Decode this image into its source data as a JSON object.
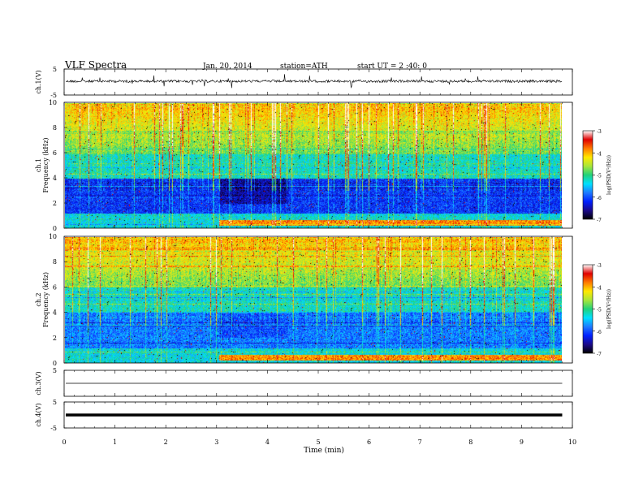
{
  "header": {
    "title": "VLF  Spectra",
    "date": "Jan. 20, 2014",
    "station": "station=ATH",
    "start": "start  UT  =  2 :40: 0"
  },
  "chart_data": [
    {
      "type": "line",
      "id": "ch1-waveform",
      "ylabel": "ch.1(V)",
      "ylim": [
        -5,
        5
      ],
      "yticks": [
        5,
        -5
      ],
      "xlim": [
        0,
        10
      ],
      "description_level": 0.3
    },
    {
      "type": "heatmap",
      "id": "ch1-spectrogram",
      "ylabel": [
        "ch.1",
        "Frequency  (kHz)"
      ],
      "ylim": [
        0,
        10
      ],
      "yticks": [
        0,
        2,
        4,
        6,
        8,
        10
      ],
      "xlim": [
        0,
        10
      ],
      "data_extent_x": 9.8,
      "colorbar": {
        "label": "log(PSD(V²/Hz))",
        "range": [
          -7,
          -3
        ],
        "ticks": [
          -3,
          -4,
          -5,
          -6,
          -7
        ]
      }
    },
    {
      "type": "heatmap",
      "id": "ch2-spectrogram",
      "ylabel": [
        "ch.2",
        "Frequency  (kHz)"
      ],
      "ylim": [
        0,
        10
      ],
      "yticks": [
        0,
        2,
        4,
        6,
        8,
        10
      ],
      "xlim": [
        0,
        10
      ],
      "data_extent_x": 9.8,
      "colorbar": {
        "label": "log(PSD(V²/Hz))",
        "range": [
          -7,
          -3
        ],
        "ticks": [
          -3,
          -4,
          -5,
          -6,
          -7
        ]
      }
    },
    {
      "type": "line",
      "id": "ch3-waveform",
      "ylabel": "ch.3(V)",
      "ylim": [
        -5,
        5
      ],
      "yticks": [
        5
      ],
      "xlim": [
        0,
        10
      ],
      "level": 0
    },
    {
      "type": "line",
      "id": "ch4-waveform",
      "ylabel": "ch.4(V)",
      "ylim": [
        -5,
        5
      ],
      "yticks": [
        5,
        -5
      ],
      "xlim": [
        0,
        10
      ],
      "level": 0
    }
  ],
  "xaxis": {
    "label": "Time  (min)",
    "ticks": [
      "0",
      "1",
      "2",
      "3",
      "4",
      "5",
      "6",
      "7",
      "8",
      "9",
      "10"
    ]
  },
  "colors": {
    "colormap": [
      "#000000",
      "#1b0a8a",
      "#0020ff",
      "#1f7bff",
      "#00e0ff",
      "#22d27a",
      "#a8e63a",
      "#ffe800",
      "#ff7a00",
      "#e00000",
      "#ffffff"
    ]
  }
}
